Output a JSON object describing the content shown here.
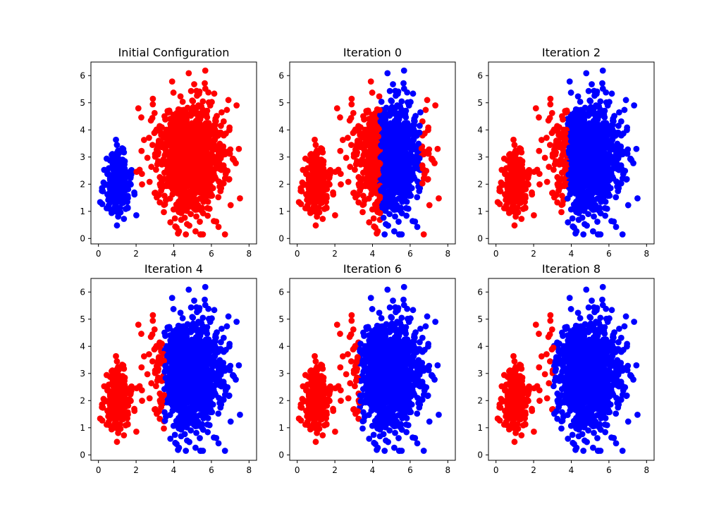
{
  "figure": {
    "colors": {
      "cluster_a": "#ff0000",
      "cluster_b": "#0000ff",
      "axes": "#000000",
      "background": "#ffffff"
    }
  },
  "chart_data": [
    {
      "type": "scatter",
      "title": "Initial Configuration",
      "xlabel": "",
      "ylabel": "",
      "xlim": [
        -0.4,
        8.4
      ],
      "ylim": [
        -0.2,
        6.5
      ],
      "xticks": [
        0,
        2,
        4,
        6,
        8
      ],
      "yticks": [
        0,
        1,
        2,
        3,
        4,
        5,
        6
      ],
      "clusters": [
        {
          "name": "left blob",
          "center": [
            1.0,
            2.0
          ],
          "spread": [
            0.35,
            0.6
          ],
          "count": 260
        },
        {
          "name": "right blob",
          "center": [
            4.9,
            3.0
          ],
          "spread": [
            0.9,
            1.05
          ],
          "count": 1100
        }
      ],
      "assignment": {
        "mode": "initial",
        "left_color": "cluster_b",
        "right_color": "cluster_a"
      }
    },
    {
      "type": "scatter",
      "title": "Iteration 0",
      "xlabel": "",
      "ylabel": "",
      "xlim": [
        -0.4,
        8.4
      ],
      "ylim": [
        -0.2,
        6.5
      ],
      "xticks": [
        0,
        2,
        4,
        6,
        8
      ],
      "yticks": [
        0,
        1,
        2,
        3,
        4,
        5,
        6
      ],
      "clusters": [
        {
          "name": "left blob",
          "center": [
            1.0,
            2.0
          ],
          "spread": [
            0.35,
            0.6
          ],
          "count": 260
        },
        {
          "name": "right blob",
          "center": [
            4.9,
            3.0
          ],
          "spread": [
            0.9,
            1.05
          ],
          "count": 1100
        }
      ],
      "assignment": {
        "mode": "band",
        "band_min_x": 4.4,
        "band_max_x": 6.6,
        "inside_color": "cluster_b",
        "outside_color": "cluster_a"
      }
    },
    {
      "type": "scatter",
      "title": "Iteration 2",
      "xlabel": "",
      "ylabel": "",
      "xlim": [
        -0.4,
        8.4
      ],
      "ylim": [
        -0.2,
        6.5
      ],
      "xticks": [
        0,
        2,
        4,
        6,
        8
      ],
      "yticks": [
        0,
        1,
        2,
        3,
        4,
        5,
        6
      ],
      "clusters": [
        {
          "name": "left blob",
          "center": [
            1.0,
            2.0
          ],
          "spread": [
            0.35,
            0.6
          ],
          "count": 260
        },
        {
          "name": "right blob",
          "center": [
            4.9,
            3.0
          ],
          "spread": [
            0.9,
            1.05
          ],
          "count": 1100
        }
      ],
      "assignment": {
        "mode": "threshold",
        "boundary_x": 3.8,
        "right_color": "cluster_b",
        "left_color": "cluster_a"
      }
    },
    {
      "type": "scatter",
      "title": "Iteration 4",
      "xlabel": "",
      "ylabel": "",
      "xlim": [
        -0.4,
        8.4
      ],
      "ylim": [
        -0.2,
        6.5
      ],
      "xticks": [
        0,
        2,
        4,
        6,
        8
      ],
      "yticks": [
        0,
        1,
        2,
        3,
        4,
        5,
        6
      ],
      "clusters": [
        {
          "name": "left blob",
          "center": [
            1.0,
            2.0
          ],
          "spread": [
            0.35,
            0.6
          ],
          "count": 260
        },
        {
          "name": "right blob",
          "center": [
            4.9,
            3.0
          ],
          "spread": [
            0.9,
            1.05
          ],
          "count": 1100
        }
      ],
      "assignment": {
        "mode": "threshold",
        "boundary_x": 3.5,
        "right_color": "cluster_b",
        "left_color": "cluster_a"
      }
    },
    {
      "type": "scatter",
      "title": "Iteration 6",
      "xlabel": "",
      "ylabel": "",
      "xlim": [
        -0.4,
        8.4
      ],
      "ylim": [
        -0.2,
        6.5
      ],
      "xticks": [
        0,
        2,
        4,
        6,
        8
      ],
      "yticks": [
        0,
        1,
        2,
        3,
        4,
        5,
        6
      ],
      "clusters": [
        {
          "name": "left blob",
          "center": [
            1.0,
            2.0
          ],
          "spread": [
            0.35,
            0.6
          ],
          "count": 260
        },
        {
          "name": "right blob",
          "center": [
            4.9,
            3.0
          ],
          "spread": [
            0.9,
            1.05
          ],
          "count": 1100
        }
      ],
      "assignment": {
        "mode": "threshold",
        "boundary_x": 3.3,
        "right_color": "cluster_b",
        "left_color": "cluster_a"
      }
    },
    {
      "type": "scatter",
      "title": "Iteration 8",
      "xlabel": "",
      "ylabel": "",
      "xlim": [
        -0.4,
        8.4
      ],
      "ylim": [
        -0.2,
        6.5
      ],
      "xticks": [
        0,
        2,
        4,
        6,
        8
      ],
      "yticks": [
        0,
        1,
        2,
        3,
        4,
        5,
        6
      ],
      "clusters": [
        {
          "name": "left blob",
          "center": [
            1.0,
            2.0
          ],
          "spread": [
            0.35,
            0.6
          ],
          "count": 260
        },
        {
          "name": "right blob",
          "center": [
            4.9,
            3.0
          ],
          "spread": [
            0.9,
            1.05
          ],
          "count": 1100
        }
      ],
      "assignment": {
        "mode": "threshold",
        "boundary_x": 3.05,
        "right_color": "cluster_b",
        "left_color": "cluster_a"
      }
    }
  ]
}
